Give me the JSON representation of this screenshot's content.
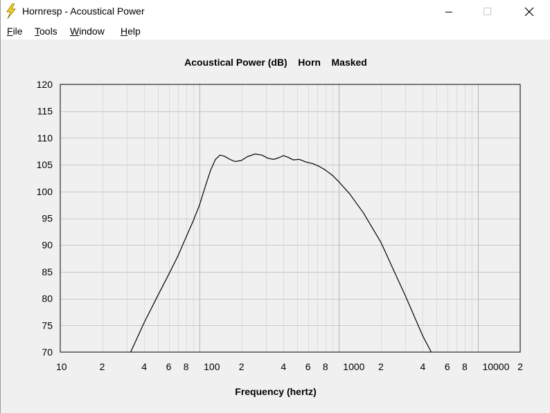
{
  "window": {
    "title": "Hornresp - Acoustical Power",
    "buttons": {
      "minimize": "minimize",
      "maximize": "maximize",
      "close": "close"
    }
  },
  "menu": [
    {
      "label": "File",
      "mnemonic": "F",
      "rest": "ile"
    },
    {
      "label": "Tools",
      "mnemonic": "T",
      "rest": "ools"
    },
    {
      "label": "Window",
      "mnemonic": "W",
      "rest": "indow"
    },
    {
      "label": "Help",
      "mnemonic": "H",
      "rest": "elp"
    }
  ],
  "chart_data": {
    "type": "line",
    "title": "Acoustical Power (dB)    Horn    Masked",
    "xlabel": "Frequency (hertz)",
    "ylabel": "",
    "x_scale": "log",
    "xlim": [
      10,
      20000
    ],
    "ylim": [
      70,
      120
    ],
    "y_ticks": [
      70,
      75,
      80,
      85,
      90,
      95,
      100,
      105,
      110,
      115,
      120
    ],
    "x_tick_labels": [
      {
        "value": 10,
        "label": "10"
      },
      {
        "value": 20,
        "label": "2"
      },
      {
        "value": 40,
        "label": "4"
      },
      {
        "value": 60,
        "label": "6"
      },
      {
        "value": 80,
        "label": "8"
      },
      {
        "value": 100,
        "label": "100"
      },
      {
        "value": 200,
        "label": "2"
      },
      {
        "value": 400,
        "label": "4"
      },
      {
        "value": 600,
        "label": "6"
      },
      {
        "value": 800,
        "label": "8"
      },
      {
        "value": 1000,
        "label": "1000"
      },
      {
        "value": 2000,
        "label": "2"
      },
      {
        "value": 4000,
        "label": "4"
      },
      {
        "value": 6000,
        "label": "6"
      },
      {
        "value": 8000,
        "label": "8"
      },
      {
        "value": 10000,
        "label": "10000"
      },
      {
        "value": 20000,
        "label": "2"
      }
    ],
    "grid": true,
    "series": [
      {
        "points": [
          [
            32,
            70
          ],
          [
            40,
            75.5
          ],
          [
            50,
            80.5
          ],
          [
            60,
            84.5
          ],
          [
            70,
            88
          ],
          [
            80,
            91.5
          ],
          [
            90,
            94.5
          ],
          [
            100,
            97.5
          ],
          [
            110,
            101
          ],
          [
            120,
            104
          ],
          [
            130,
            106
          ],
          [
            140,
            106.8
          ],
          [
            150,
            106.6
          ],
          [
            165,
            106
          ],
          [
            180,
            105.6
          ],
          [
            200,
            105.8
          ],
          [
            220,
            106.5
          ],
          [
            250,
            107
          ],
          [
            280,
            106.8
          ],
          [
            310,
            106.2
          ],
          [
            340,
            106
          ],
          [
            370,
            106.3
          ],
          [
            400,
            106.7
          ],
          [
            430,
            106.4
          ],
          [
            470,
            105.9
          ],
          [
            520,
            106
          ],
          [
            580,
            105.5
          ],
          [
            650,
            105.2
          ],
          [
            720,
            104.7
          ],
          [
            800,
            104
          ],
          [
            900,
            103
          ],
          [
            1000,
            101.8
          ],
          [
            1200,
            99.5
          ],
          [
            1500,
            96
          ],
          [
            2000,
            90.5
          ],
          [
            2500,
            85
          ],
          [
            3000,
            80.5
          ],
          [
            3500,
            76.5
          ],
          [
            4000,
            73
          ],
          [
            4600,
            70
          ]
        ]
      }
    ]
  }
}
